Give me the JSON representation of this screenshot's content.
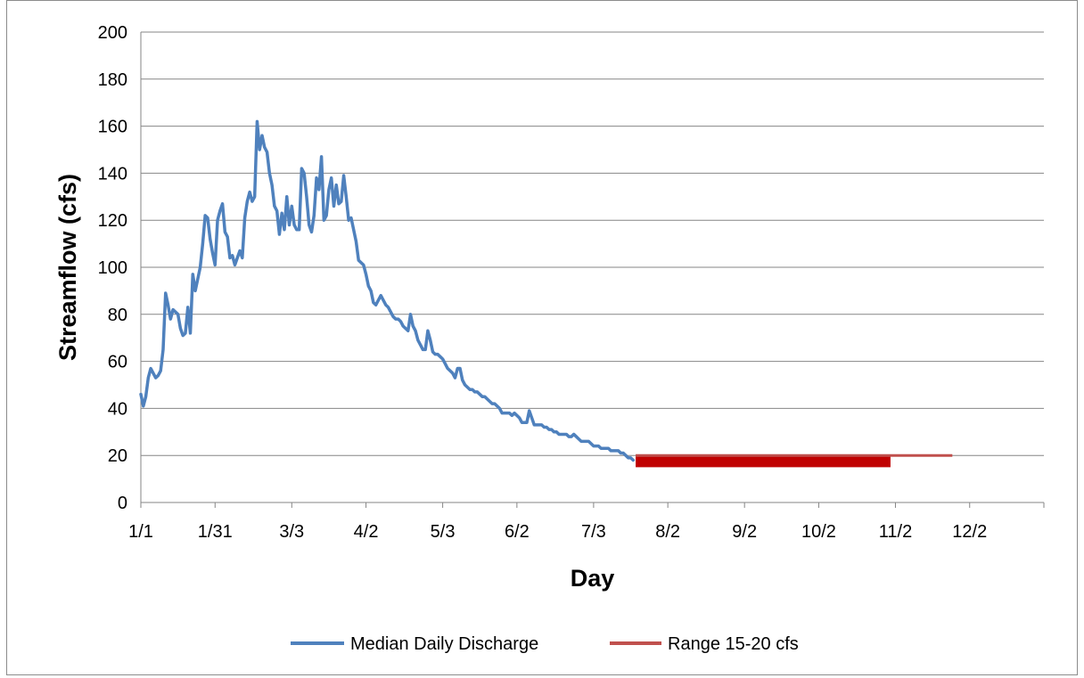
{
  "chart_data": {
    "type": "line",
    "xlabel": "Day",
    "ylabel": "Streamflow (cfs)",
    "ylim": [
      0,
      200
    ],
    "y_ticks": [
      0,
      20,
      40,
      60,
      80,
      100,
      120,
      140,
      160,
      180,
      200
    ],
    "x_tick_labels": [
      "1/1",
      "1/31",
      "3/3",
      "4/2",
      "5/3",
      "6/2",
      "7/3",
      "8/2",
      "9/2",
      "10/2",
      "11/2",
      "12/2"
    ],
    "x_tick_days": [
      1,
      31,
      62,
      92,
      123,
      153,
      184,
      214,
      245,
      275,
      306,
      336
    ],
    "x_range_days": [
      1,
      366
    ],
    "grid": "horizontal",
    "legend_position": "bottom",
    "series": [
      {
        "name": "Median Daily Discharge",
        "color": "#4f81bd",
        "points": [
          [
            1,
            46
          ],
          [
            2,
            41
          ],
          [
            3,
            45
          ],
          [
            4,
            53
          ],
          [
            5,
            57
          ],
          [
            6,
            55
          ],
          [
            7,
            53
          ],
          [
            8,
            54
          ],
          [
            9,
            56
          ],
          [
            10,
            65
          ],
          [
            11,
            89
          ],
          [
            12,
            84
          ],
          [
            13,
            78
          ],
          [
            14,
            82
          ],
          [
            15,
            81
          ],
          [
            16,
            80
          ],
          [
            17,
            74
          ],
          [
            18,
            71
          ],
          [
            19,
            72
          ],
          [
            20,
            83
          ],
          [
            21,
            72
          ],
          [
            22,
            97
          ],
          [
            23,
            90
          ],
          [
            24,
            95
          ],
          [
            25,
            100
          ],
          [
            26,
            110
          ],
          [
            27,
            122
          ],
          [
            28,
            121
          ],
          [
            29,
            112
          ],
          [
            30,
            106
          ],
          [
            31,
            101
          ],
          [
            32,
            120
          ],
          [
            33,
            124
          ],
          [
            34,
            127
          ],
          [
            35,
            115
          ],
          [
            36,
            113
          ],
          [
            37,
            104
          ],
          [
            38,
            105
          ],
          [
            39,
            101
          ],
          [
            40,
            104
          ],
          [
            41,
            107
          ],
          [
            42,
            104
          ],
          [
            43,
            121
          ],
          [
            44,
            128
          ],
          [
            45,
            132
          ],
          [
            46,
            128
          ],
          [
            47,
            130
          ],
          [
            48,
            162
          ],
          [
            49,
            150
          ],
          [
            50,
            156
          ],
          [
            51,
            151
          ],
          [
            52,
            149
          ],
          [
            53,
            140
          ],
          [
            54,
            135
          ],
          [
            55,
            126
          ],
          [
            56,
            124
          ],
          [
            57,
            114
          ],
          [
            58,
            123
          ],
          [
            59,
            116
          ],
          [
            60,
            130
          ],
          [
            61,
            118
          ],
          [
            62,
            126
          ],
          [
            63,
            118
          ],
          [
            64,
            116
          ],
          [
            65,
            116
          ],
          [
            66,
            142
          ],
          [
            67,
            140
          ],
          [
            68,
            130
          ],
          [
            69,
            118
          ],
          [
            70,
            115
          ],
          [
            71,
            122
          ],
          [
            72,
            138
          ],
          [
            73,
            133
          ],
          [
            74,
            147
          ],
          [
            75,
            120
          ],
          [
            76,
            122
          ],
          [
            77,
            133
          ],
          [
            78,
            138
          ],
          [
            79,
            126
          ],
          [
            80,
            135
          ],
          [
            81,
            127
          ],
          [
            82,
            128
          ],
          [
            83,
            139
          ],
          [
            84,
            130
          ],
          [
            85,
            120
          ],
          [
            86,
            121
          ],
          [
            87,
            116
          ],
          [
            88,
            111
          ],
          [
            89,
            103
          ],
          [
            90,
            102
          ],
          [
            91,
            101
          ],
          [
            92,
            97
          ],
          [
            93,
            92
          ],
          [
            94,
            90
          ],
          [
            95,
            85
          ],
          [
            96,
            84
          ],
          [
            97,
            86
          ],
          [
            98,
            88
          ],
          [
            99,
            86
          ],
          [
            100,
            84
          ],
          [
            101,
            83
          ],
          [
            102,
            81
          ],
          [
            103,
            79
          ],
          [
            104,
            78
          ],
          [
            105,
            78
          ],
          [
            106,
            77
          ],
          [
            107,
            75
          ],
          [
            108,
            74
          ],
          [
            109,
            73
          ],
          [
            110,
            80
          ],
          [
            111,
            75
          ],
          [
            112,
            73
          ],
          [
            113,
            69
          ],
          [
            114,
            67
          ],
          [
            115,
            65
          ],
          [
            116,
            65
          ],
          [
            117,
            73
          ],
          [
            118,
            69
          ],
          [
            119,
            64
          ],
          [
            120,
            63
          ],
          [
            121,
            63
          ],
          [
            122,
            62
          ],
          [
            123,
            61
          ],
          [
            124,
            59
          ],
          [
            125,
            57
          ],
          [
            126,
            56
          ],
          [
            127,
            55
          ],
          [
            128,
            53
          ],
          [
            129,
            57
          ],
          [
            130,
            57
          ],
          [
            131,
            52
          ],
          [
            132,
            50
          ],
          [
            133,
            49
          ],
          [
            134,
            48
          ],
          [
            135,
            48
          ],
          [
            136,
            47
          ],
          [
            137,
            47
          ],
          [
            138,
            46
          ],
          [
            139,
            45
          ],
          [
            140,
            45
          ],
          [
            141,
            44
          ],
          [
            142,
            43
          ],
          [
            143,
            42
          ],
          [
            144,
            42
          ],
          [
            145,
            41
          ],
          [
            146,
            40
          ],
          [
            147,
            38
          ],
          [
            148,
            38
          ],
          [
            149,
            38
          ],
          [
            150,
            38
          ],
          [
            151,
            37
          ],
          [
            152,
            38
          ],
          [
            153,
            37
          ],
          [
            154,
            36
          ],
          [
            155,
            34
          ],
          [
            156,
            34
          ],
          [
            157,
            34
          ],
          [
            158,
            39
          ],
          [
            159,
            36
          ],
          [
            160,
            33
          ],
          [
            161,
            33
          ],
          [
            162,
            33
          ],
          [
            163,
            33
          ],
          [
            164,
            32
          ],
          [
            165,
            32
          ],
          [
            166,
            31
          ],
          [
            167,
            31
          ],
          [
            168,
            30
          ],
          [
            169,
            30
          ],
          [
            170,
            29
          ],
          [
            171,
            29
          ],
          [
            172,
            29
          ],
          [
            173,
            29
          ],
          [
            174,
            28
          ],
          [
            175,
            28
          ],
          [
            176,
            29
          ],
          [
            177,
            28
          ],
          [
            178,
            27
          ],
          [
            179,
            26
          ],
          [
            180,
            26
          ],
          [
            181,
            26
          ],
          [
            182,
            26
          ],
          [
            183,
            25
          ],
          [
            184,
            24
          ],
          [
            185,
            24
          ],
          [
            186,
            24
          ],
          [
            187,
            23
          ],
          [
            188,
            23
          ],
          [
            189,
            23
          ],
          [
            190,
            23
          ],
          [
            191,
            22
          ],
          [
            192,
            22
          ],
          [
            193,
            22
          ],
          [
            194,
            22
          ],
          [
            195,
            21
          ],
          [
            196,
            21
          ],
          [
            197,
            20
          ],
          [
            198,
            19
          ],
          [
            199,
            19
          ],
          [
            200,
            18
          ]
        ]
      },
      {
        "name": "Range 15-20 cfs",
        "color": "#c0504d",
        "band_color": "#c00000",
        "band": {
          "x_start": 201,
          "x_end": 304,
          "y_low": 15,
          "y_high": 20
        },
        "points": [
          [
            201,
            20
          ],
          [
            329,
            20
          ]
        ]
      }
    ]
  }
}
